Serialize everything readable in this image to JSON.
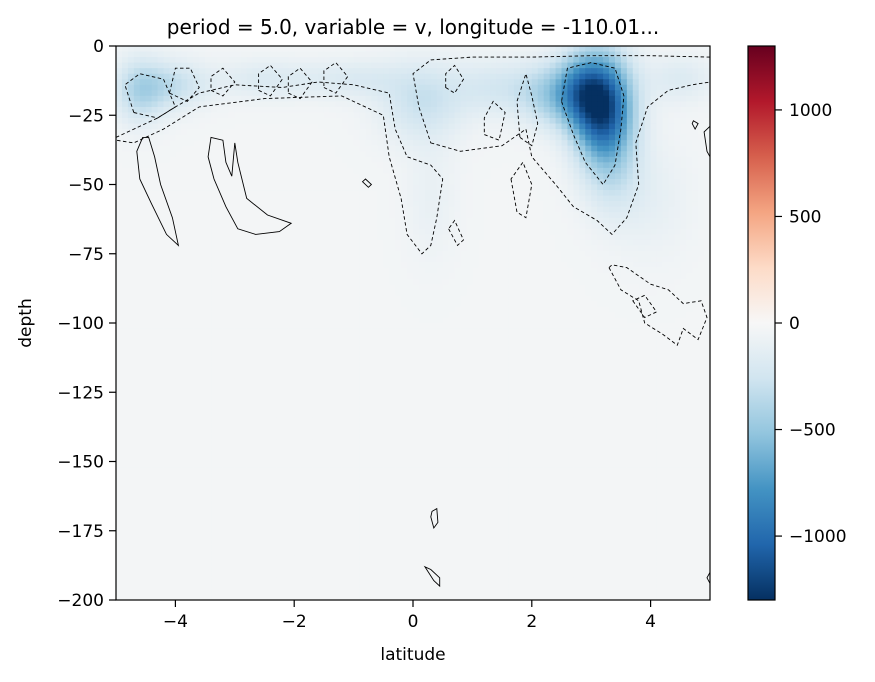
{
  "chart_data": {
    "type": "heatmap",
    "title": "period = 5.0, variable = v, longitude = -110.01...",
    "xlabel": "latitude",
    "ylabel": "depth",
    "xlim": [
      -5,
      5
    ],
    "ylim": [
      -200,
      0
    ],
    "x_ticks": [
      -4,
      -2,
      0,
      2,
      4
    ],
    "x_tick_labels": [
      "−4",
      "−2",
      "0",
      "2",
      "4"
    ],
    "y_ticks": [
      0,
      -25,
      -50,
      -75,
      -100,
      -125,
      -150,
      -175,
      -200
    ],
    "y_tick_labels": [
      "0",
      "−25",
      "−50",
      "−75",
      "−100",
      "−125",
      "−150",
      "−175",
      "−200"
    ],
    "colormap": "RdBu_r",
    "colorbar": {
      "vmin": -1300,
      "vmax": 1300,
      "ticks": [
        1000,
        500,
        0,
        -500,
        -1000
      ],
      "tick_labels": [
        "1000",
        "500",
        "0",
        "−500",
        "−1000"
      ],
      "colors": [
        "#053061",
        "#2166ac",
        "#4393c3",
        "#92c5de",
        "#d1e5f0",
        "#f7f7f7",
        "#fddbc7",
        "#f4a582",
        "#d6604d",
        "#b2182b",
        "#67001f"
      ]
    },
    "background_value": -30,
    "blobs": [
      {
        "lat": 3.2,
        "depth": -22,
        "sx": 0.35,
        "sy": 13,
        "value": -1150
      },
      {
        "lat": 2.8,
        "depth": -16,
        "sx": 0.3,
        "sy": 9,
        "value": -500
      },
      {
        "lat": 2.3,
        "depth": -18,
        "sx": 0.35,
        "sy": 8,
        "value": -300
      },
      {
        "lat": 3.35,
        "depth": -45,
        "sx": 0.35,
        "sy": 12,
        "value": -200
      },
      {
        "lat": 0.15,
        "depth": -20,
        "sx": 0.5,
        "sy": 10,
        "value": -250
      },
      {
        "lat": 1.5,
        "depth": -15,
        "sx": 0.6,
        "sy": 7,
        "value": -200
      },
      {
        "lat": -4.6,
        "depth": -16,
        "sx": 0.3,
        "sy": 8,
        "value": -350
      },
      {
        "lat": -4.0,
        "depth": -14,
        "sx": 0.4,
        "sy": 6,
        "value": -250
      },
      {
        "lat": -2.5,
        "depth": -12,
        "sx": 0.6,
        "sy": 5,
        "value": -150
      },
      {
        "lat": -1.0,
        "depth": -12,
        "sx": 0.6,
        "sy": 5,
        "value": -150
      },
      {
        "lat": 4.5,
        "depth": -12,
        "sx": 0.4,
        "sy": 6,
        "value": -150
      },
      {
        "lat": 4.0,
        "depth": -55,
        "sx": 0.5,
        "sy": 15,
        "value": -80
      },
      {
        "lat": 0.3,
        "depth": -55,
        "sx": 0.3,
        "sy": 15,
        "value": -70
      }
    ],
    "dashed_contours": [
      [
        [
          -5,
          -33
        ],
        [
          -4.7,
          -30
        ],
        [
          -4.3,
          -26
        ],
        [
          -4.0,
          -22
        ],
        [
          -3.6,
          -17
        ],
        [
          -3.0,
          -14
        ],
        [
          -2.2,
          -15
        ],
        [
          -1.6,
          -13
        ],
        [
          -1.0,
          -14
        ],
        [
          -0.4,
          -17
        ],
        [
          -0.3,
          -30
        ],
        [
          -0.1,
          -40
        ],
        [
          0.3,
          -43
        ],
        [
          0.5,
          -48
        ],
        [
          0.4,
          -62
        ],
        [
          0.3,
          -72
        ],
        [
          0.15,
          -75
        ],
        [
          -0.1,
          -68
        ],
        [
          -0.2,
          -55
        ],
        [
          -0.4,
          -40
        ],
        [
          -0.5,
          -25
        ],
        [
          -1.2,
          -18
        ],
        [
          -2.5,
          -19
        ],
        [
          -3.6,
          -22
        ],
        [
          -4.2,
          -30
        ],
        [
          -4.7,
          -35
        ],
        [
          -5,
          -34
        ]
      ],
      [
        [
          0.3,
          -35
        ],
        [
          0.8,
          -38
        ],
        [
          1.5,
          -36
        ],
        [
          1.9,
          -30
        ],
        [
          2.0,
          -40
        ],
        [
          2.4,
          -50
        ],
        [
          2.7,
          -58
        ],
        [
          3.1,
          -63
        ],
        [
          3.35,
          -68
        ],
        [
          3.6,
          -62
        ],
        [
          3.8,
          -50
        ],
        [
          3.75,
          -35
        ],
        [
          3.95,
          -22
        ],
        [
          4.3,
          -16
        ],
        [
          4.7,
          -14
        ],
        [
          5,
          -13
        ],
        [
          5,
          -4
        ],
        [
          4.0,
          -3.5
        ],
        [
          3.0,
          -3.5
        ],
        [
          2.0,
          -4
        ],
        [
          1.0,
          -4
        ],
        [
          0.3,
          -5
        ],
        [
          0.0,
          -10
        ],
        [
          0.1,
          -22
        ],
        [
          0.3,
          -35
        ]
      ],
      [
        [
          2.5,
          -20
        ],
        [
          2.7,
          -32
        ],
        [
          2.9,
          -42
        ],
        [
          3.2,
          -50
        ],
        [
          3.4,
          -43
        ],
        [
          3.5,
          -30
        ],
        [
          3.55,
          -18
        ],
        [
          3.4,
          -8
        ],
        [
          3.0,
          -6
        ],
        [
          2.6,
          -8
        ],
        [
          2.5,
          -20
        ]
      ],
      [
        [
          1.8,
          -33
        ],
        [
          2.0,
          -36
        ],
        [
          2.1,
          -28
        ],
        [
          2.0,
          -18
        ],
        [
          1.9,
          -10
        ],
        [
          1.75,
          -20
        ],
        [
          1.8,
          -33
        ]
      ],
      [
        [
          1.65,
          -48
        ],
        [
          1.75,
          -60
        ],
        [
          1.9,
          -62
        ],
        [
          2.0,
          -50
        ],
        [
          1.85,
          -42
        ],
        [
          1.65,
          -48
        ]
      ],
      [
        [
          -4.7,
          -24
        ],
        [
          -4.3,
          -26
        ],
        [
          -4.0,
          -22
        ],
        [
          -4.2,
          -12
        ],
        [
          -4.6,
          -10
        ],
        [
          -4.85,
          -14
        ],
        [
          -4.7,
          -24
        ]
      ],
      [
        [
          -4.1,
          -17
        ],
        [
          -3.8,
          -20
        ],
        [
          -3.6,
          -15
        ],
        [
          -3.75,
          -8
        ],
        [
          -4.0,
          -8
        ],
        [
          -4.1,
          -17
        ]
      ],
      [
        [
          -3.4,
          -16
        ],
        [
          -3.2,
          -18
        ],
        [
          -3.0,
          -13
        ],
        [
          -3.2,
          -8
        ],
        [
          -3.4,
          -11
        ],
        [
          -3.4,
          -16
        ]
      ],
      [
        [
          -2.6,
          -16
        ],
        [
          -2.4,
          -18
        ],
        [
          -2.2,
          -12
        ],
        [
          -2.4,
          -7
        ],
        [
          -2.6,
          -10
        ],
        [
          -2.6,
          -16
        ]
      ],
      [
        [
          -2.1,
          -17
        ],
        [
          -1.9,
          -19
        ],
        [
          -1.7,
          -13
        ],
        [
          -1.9,
          -8
        ],
        [
          -2.1,
          -11
        ],
        [
          -2.1,
          -17
        ]
      ],
      [
        [
          -1.5,
          -15
        ],
        [
          -1.3,
          -17
        ],
        [
          -1.1,
          -11
        ],
        [
          -1.3,
          -6
        ],
        [
          -1.5,
          -9
        ],
        [
          -1.5,
          -15
        ]
      ],
      [
        [
          0.55,
          -15
        ],
        [
          0.7,
          -17
        ],
        [
          0.85,
          -12
        ],
        [
          0.7,
          -7
        ],
        [
          0.55,
          -10
        ],
        [
          0.55,
          -15
        ]
      ],
      [
        [
          1.2,
          -32
        ],
        [
          1.45,
          -34
        ],
        [
          1.55,
          -24
        ],
        [
          1.35,
          -20
        ],
        [
          1.2,
          -26
        ],
        [
          1.2,
          -32
        ]
      ],
      [
        [
          0.6,
          -66
        ],
        [
          0.75,
          -72
        ],
        [
          0.85,
          -70
        ],
        [
          0.7,
          -63
        ],
        [
          0.6,
          -66
        ]
      ],
      [
        [
          3.3,
          -80
        ],
        [
          3.5,
          -88
        ],
        [
          3.8,
          -92
        ],
        [
          3.9,
          -100
        ],
        [
          4.2,
          -104
        ],
        [
          4.45,
          -108
        ],
        [
          4.55,
          -102
        ],
        [
          4.8,
          -106
        ],
        [
          4.95,
          -98
        ],
        [
          4.85,
          -92
        ],
        [
          4.55,
          -93
        ],
        [
          4.3,
          -88
        ],
        [
          4.0,
          -86
        ],
        [
          3.6,
          -80
        ],
        [
          3.35,
          -79
        ],
        [
          3.3,
          -80
        ]
      ],
      [
        [
          3.7,
          -92
        ],
        [
          3.9,
          -98
        ],
        [
          4.1,
          -96
        ],
        [
          3.9,
          -90
        ],
        [
          3.7,
          -92
        ]
      ]
    ],
    "solid_contours": [
      [
        [
          -4.55,
          -33
        ],
        [
          -4.65,
          -38
        ],
        [
          -4.6,
          -48
        ],
        [
          -4.4,
          -57
        ],
        [
          -4.15,
          -68
        ],
        [
          -3.95,
          -72
        ],
        [
          -4.05,
          -62
        ],
        [
          -4.25,
          -50
        ],
        [
          -4.35,
          -40
        ],
        [
          -4.45,
          -33
        ],
        [
          -4.55,
          -33
        ]
      ],
      [
        [
          -3.4,
          -33
        ],
        [
          -3.45,
          -40
        ],
        [
          -3.35,
          -48
        ],
        [
          -3.15,
          -58
        ],
        [
          -2.95,
          -66
        ],
        [
          -2.65,
          -68
        ],
        [
          -2.25,
          -67
        ],
        [
          -2.05,
          -64
        ],
        [
          -2.45,
          -61
        ],
        [
          -2.8,
          -55
        ],
        [
          -2.95,
          -42
        ],
        [
          -3.0,
          -35
        ],
        [
          -3.05,
          -47
        ],
        [
          -3.15,
          -42
        ],
        [
          -3.2,
          -34
        ],
        [
          -3.4,
          -33
        ]
      ],
      [
        [
          -0.85,
          -49
        ],
        [
          -0.75,
          -51
        ],
        [
          -0.7,
          -50
        ],
        [
          -0.8,
          -48
        ],
        [
          -0.85,
          -49
        ]
      ],
      [
        [
          0.3,
          -170
        ],
        [
          0.35,
          -174
        ],
        [
          0.42,
          -172
        ],
        [
          0.4,
          -167
        ],
        [
          0.32,
          -168
        ],
        [
          0.3,
          -170
        ]
      ],
      [
        [
          0.2,
          -188
        ],
        [
          0.35,
          -193
        ],
        [
          0.45,
          -195
        ],
        [
          0.45,
          -192
        ],
        [
          0.3,
          -189
        ],
        [
          0.2,
          -188
        ]
      ],
      [
        [
          4.7,
          -28
        ],
        [
          4.75,
          -30
        ],
        [
          4.8,
          -28
        ],
        [
          4.72,
          -27
        ],
        [
          4.7,
          -28
        ]
      ],
      [
        [
          4.9,
          -31
        ],
        [
          4.95,
          -38
        ],
        [
          5,
          -40
        ],
        [
          5,
          -29
        ],
        [
          4.9,
          -31
        ]
      ],
      [
        [
          4.95,
          -192
        ],
        [
          5,
          -194
        ],
        [
          5,
          -190
        ],
        [
          4.95,
          -192
        ]
      ]
    ]
  }
}
